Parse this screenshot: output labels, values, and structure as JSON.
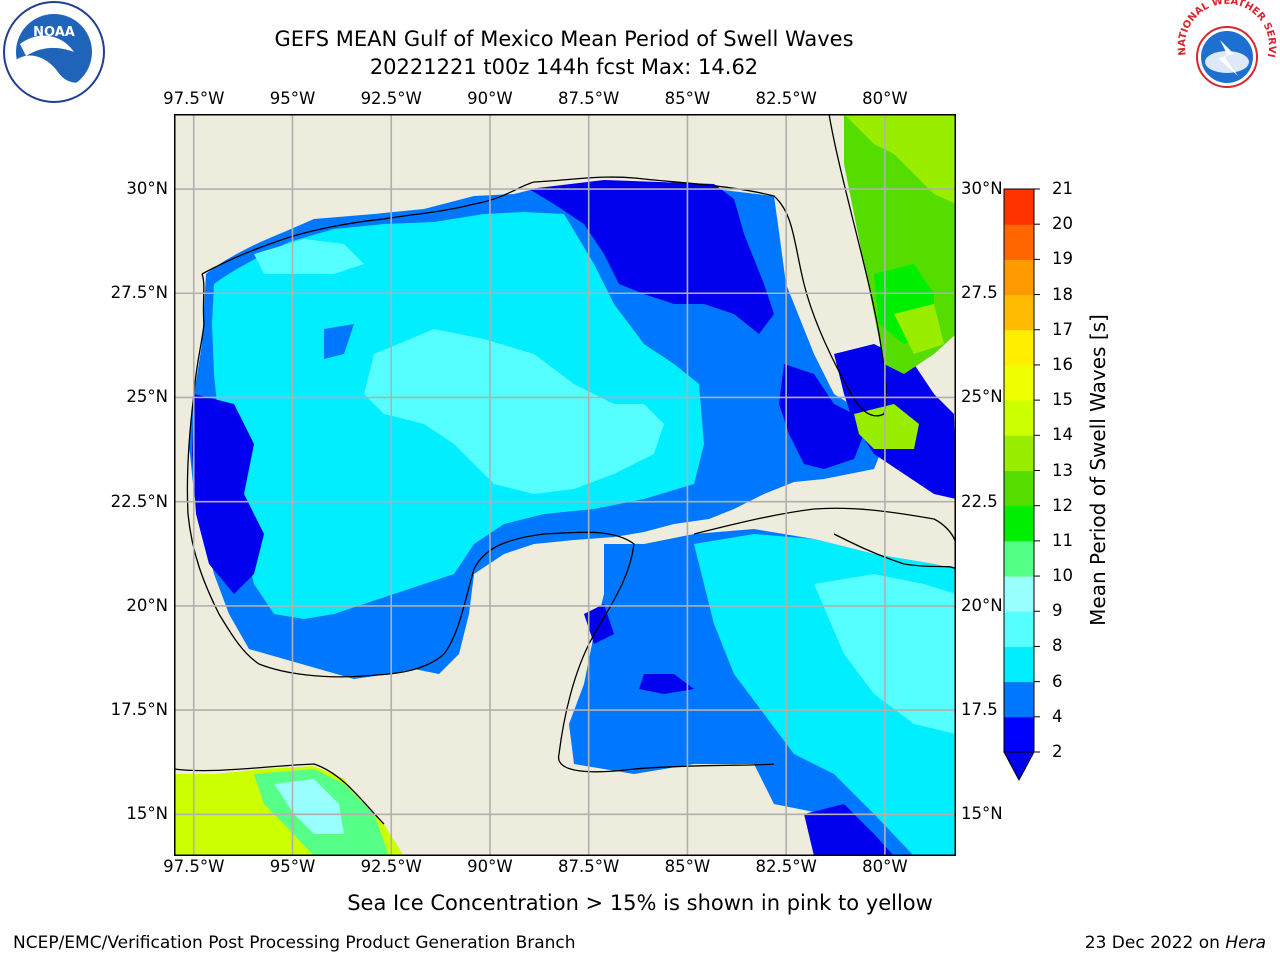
{
  "title_line1": "GEFS MEAN Gulf of Mexico Mean Period of Swell Waves",
  "title_line2": "20221221 t00z 144h fcst   Max: 14.62",
  "map": {
    "lon_labels": [
      "97.5°W",
      "95°W",
      "92.5°W",
      "90°W",
      "87.5°W",
      "85°W",
      "82.5°W",
      "80°W"
    ],
    "lat_labels_left": [
      "30°N",
      "27.5°N",
      "25°N",
      "22.5°N",
      "20°N",
      "17.5°N",
      "15°N"
    ],
    "lat_labels_right": [
      "30°N",
      "27.5",
      "25°N",
      "22.5",
      "20°N",
      "17.5",
      "15°N"
    ],
    "extent": {
      "lon_min": -98,
      "lon_max": -78.2,
      "lat_min": 14,
      "lat_max": 31.8
    },
    "colors": {
      "land": "#EEECDC",
      "grid": "#B0B0B0",
      "coast": "#000000"
    }
  },
  "colorbar": {
    "label": "Mean Period of Swell Waves [s]",
    "ticks": [
      "2",
      "4",
      "6",
      "8",
      "9",
      "10",
      "11",
      "12",
      "13",
      "14",
      "15",
      "16",
      "17",
      "18",
      "19",
      "20",
      "21"
    ],
    "colors": [
      "#0000FF",
      "#0077FF",
      "#00EEFF",
      "#55FFFF",
      "#99FFFF",
      "#55FF88",
      "#00EE00",
      "#55DD00",
      "#99EE00",
      "#CCFF00",
      "#EEFF00",
      "#FFEE00",
      "#FFBB00",
      "#FF9900",
      "#FF6600",
      "#FF3300",
      "#FF0000"
    ],
    "under_color": "#0000EE"
  },
  "ice_note": "Sea Ice Concentration > 15% is shown in pink to yellow",
  "footer": {
    "left": "NCEP/EMC/Verification Post Processing Product Generation Branch",
    "date": "23 Dec 2022 on ",
    "host": "Hera"
  },
  "logos": {
    "noaa": "NOAA",
    "nws": "NATIONAL WEATHER SERVICE"
  }
}
